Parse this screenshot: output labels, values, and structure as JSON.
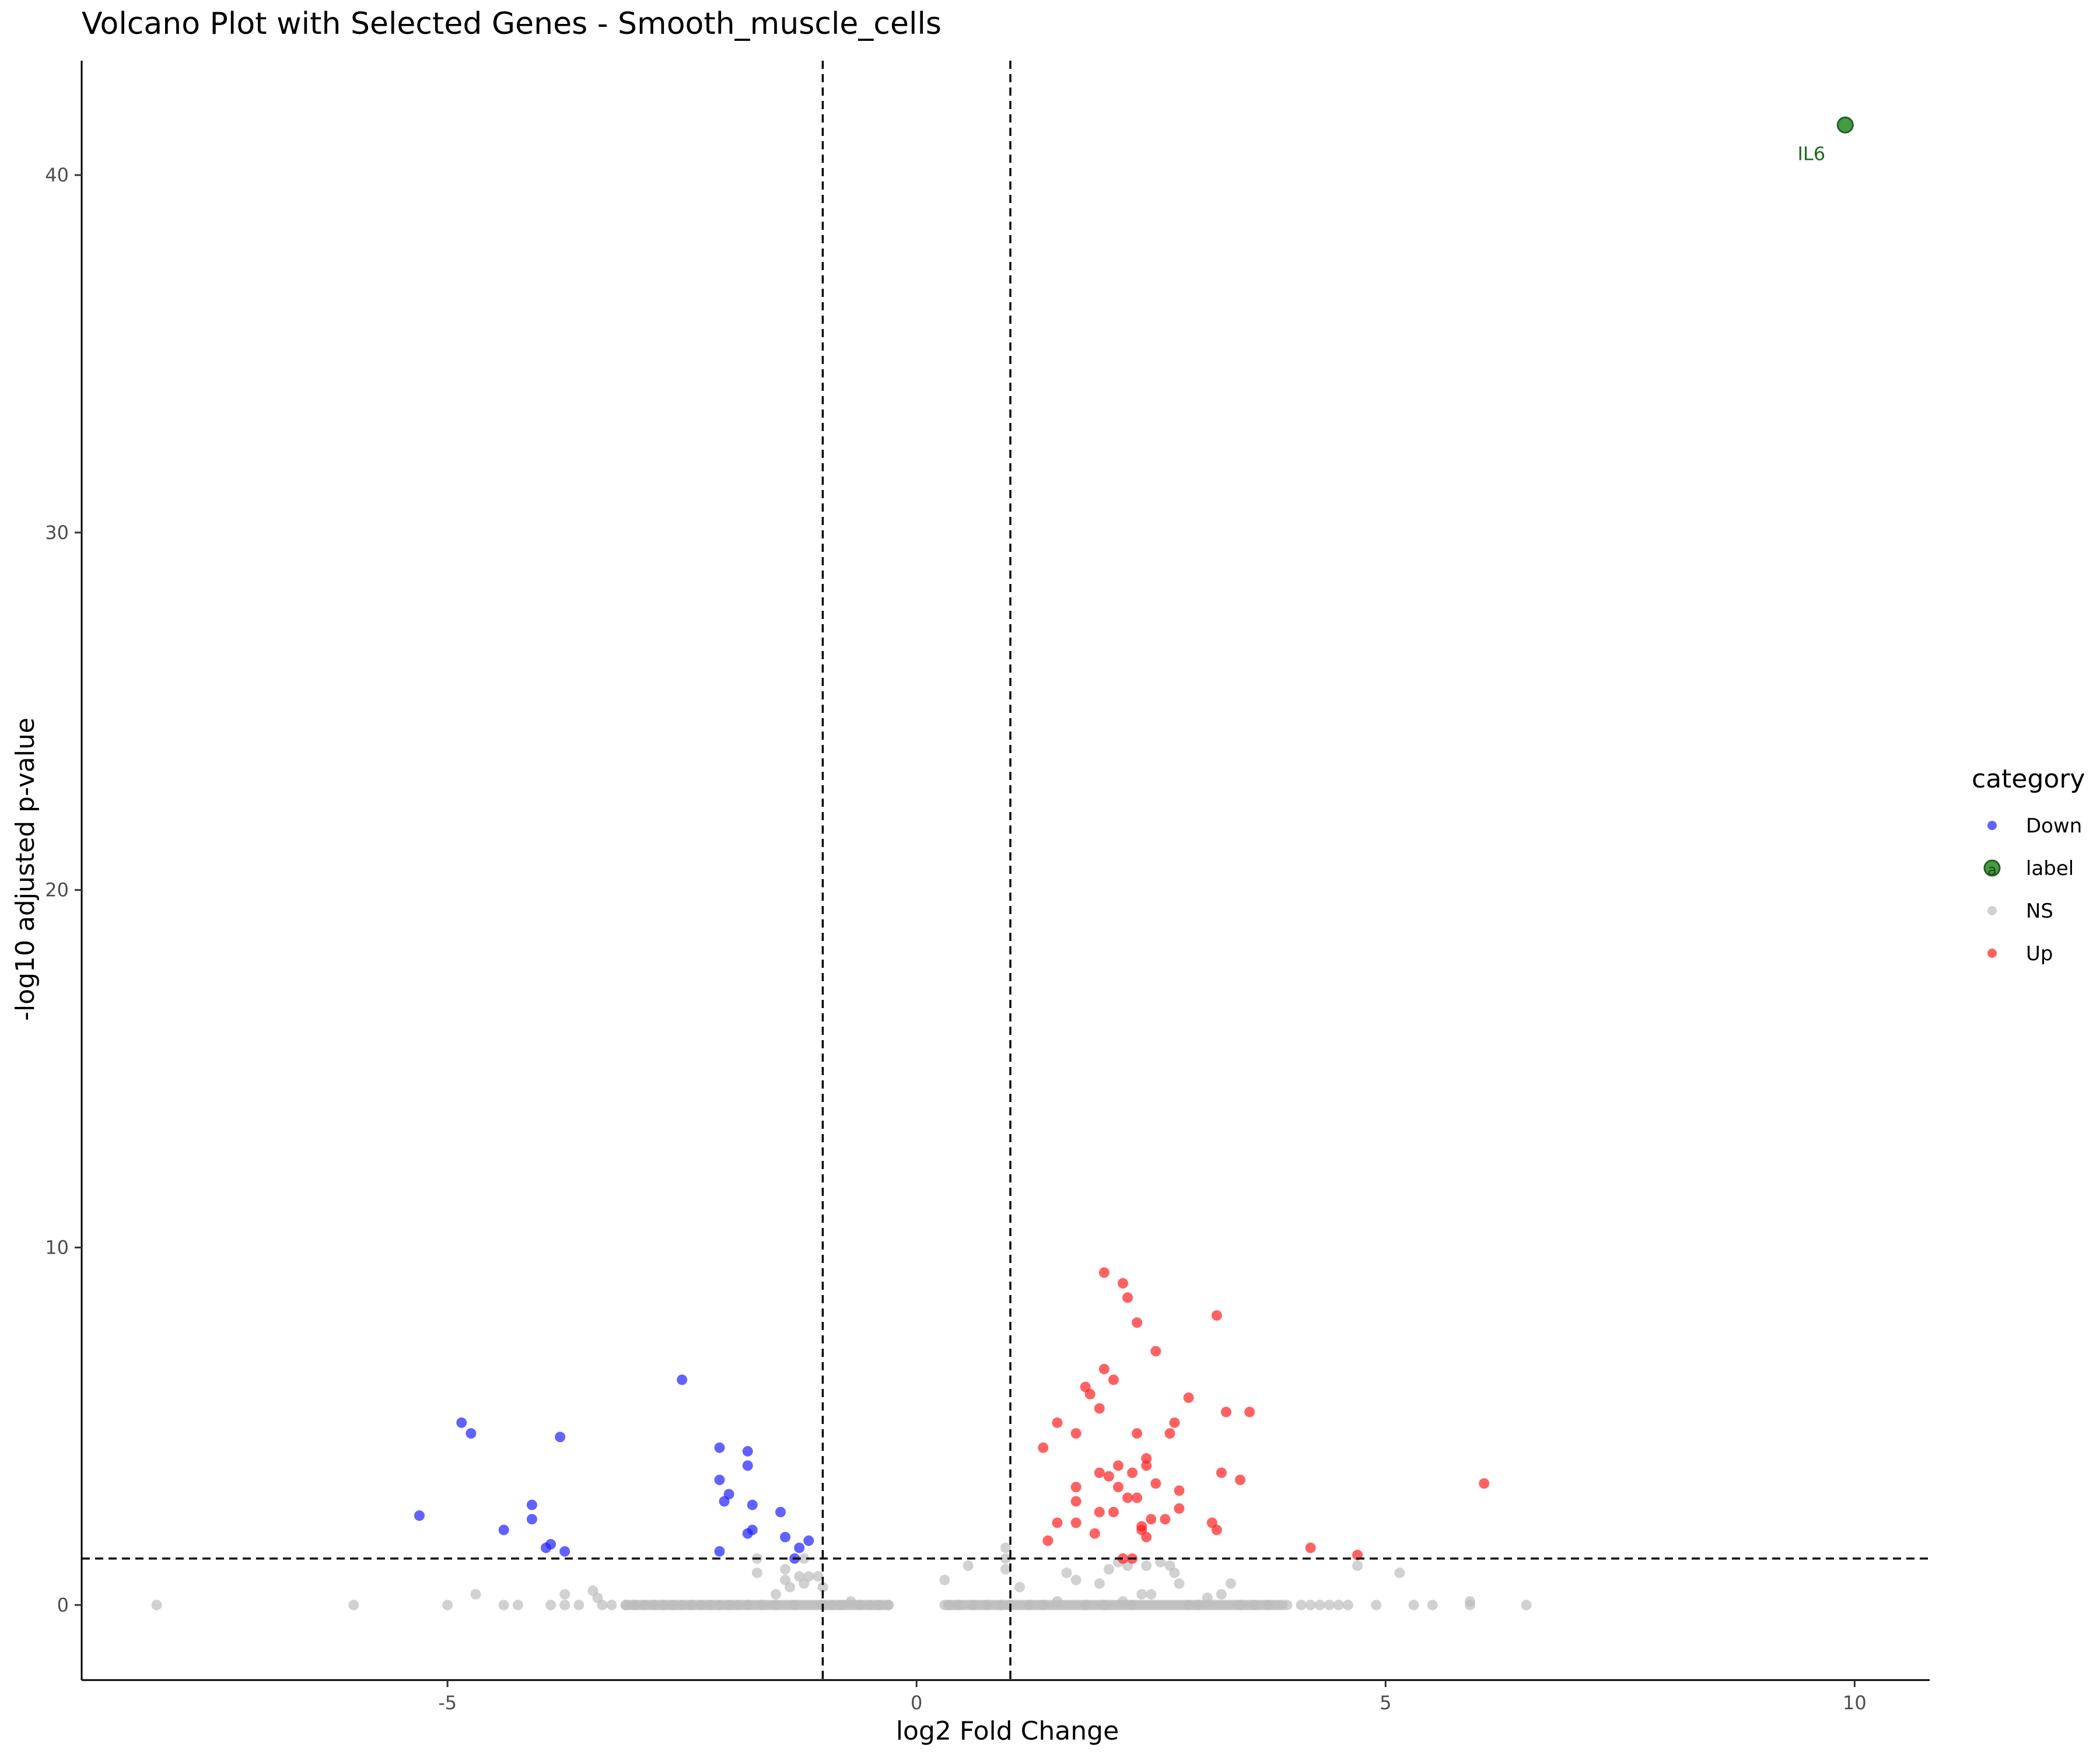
{
  "chart_data": {
    "type": "scatter",
    "title": "Volcano Plot with Selected Genes - Smooth_muscle_cells",
    "xlabel": "log2 Fold Change",
    "ylabel": "-log10 adjusted p-value",
    "xlim": [
      -8.9,
      10.8
    ],
    "ylim": [
      -2.1,
      43.2
    ],
    "xticks": [
      -5,
      0,
      5,
      10
    ],
    "yticks": [
      0,
      10,
      20,
      30,
      40
    ],
    "grid": false,
    "legend": {
      "title": "category",
      "position": "right",
      "entries": [
        {
          "label": "Down",
          "color": "#2020ff"
        },
        {
          "label": "label",
          "color": "#1e8c1e"
        },
        {
          "label": "NS",
          "color": "#bebebe"
        },
        {
          "label": "Up",
          "color": "#ff2020"
        }
      ]
    },
    "thresholds": {
      "x": [
        -1,
        1
      ],
      "y": 1.3
    },
    "series": [
      {
        "name": "Down",
        "color": "#2020ff",
        "points": [
          [
            -5.3,
            2.5
          ],
          [
            -4.85,
            5.1
          ],
          [
            -4.75,
            4.8
          ],
          [
            -4.4,
            2.1
          ],
          [
            -4.1,
            2.8
          ],
          [
            -4.1,
            2.4
          ],
          [
            -3.95,
            1.6
          ],
          [
            -3.9,
            1.7
          ],
          [
            -3.8,
            4.7
          ],
          [
            -3.75,
            1.5
          ],
          [
            -2.5,
            6.3
          ],
          [
            -2.1,
            4.4
          ],
          [
            -2.1,
            3.5
          ],
          [
            -2.05,
            2.9
          ],
          [
            -2.0,
            3.1
          ],
          [
            -2.1,
            1.5
          ],
          [
            -1.8,
            4.3
          ],
          [
            -1.8,
            3.9
          ],
          [
            -1.8,
            2.0
          ],
          [
            -1.75,
            2.8
          ],
          [
            -1.75,
            2.1
          ],
          [
            -1.45,
            2.6
          ],
          [
            -1.4,
            1.9
          ],
          [
            -1.3,
            1.3
          ],
          [
            -1.25,
            1.6
          ],
          [
            -1.15,
            1.8
          ]
        ]
      },
      {
        "name": "Up",
        "color": "#ff2020",
        "points": [
          [
            1.35,
            4.4
          ],
          [
            1.4,
            1.8
          ],
          [
            1.5,
            5.1
          ],
          [
            1.5,
            2.3
          ],
          [
            1.7,
            4.8
          ],
          [
            1.7,
            3.3
          ],
          [
            1.7,
            2.9
          ],
          [
            1.7,
            2.3
          ],
          [
            1.8,
            6.1
          ],
          [
            1.85,
            5.9
          ],
          [
            1.9,
            2.0
          ],
          [
            1.95,
            5.5
          ],
          [
            1.95,
            3.7
          ],
          [
            1.95,
            2.6
          ],
          [
            2.0,
            6.6
          ],
          [
            2.0,
            9.3
          ],
          [
            2.05,
            3.6
          ],
          [
            2.1,
            6.3
          ],
          [
            2.1,
            2.6
          ],
          [
            2.15,
            3.9
          ],
          [
            2.15,
            3.3
          ],
          [
            2.2,
            1.3
          ],
          [
            2.2,
            9.0
          ],
          [
            2.25,
            8.6
          ],
          [
            2.25,
            3.0
          ],
          [
            2.3,
            3.7
          ],
          [
            2.3,
            1.3
          ],
          [
            2.35,
            7.9
          ],
          [
            2.35,
            4.8
          ],
          [
            2.35,
            3.0
          ],
          [
            2.4,
            2.2
          ],
          [
            2.4,
            2.1
          ],
          [
            2.45,
            1.9
          ],
          [
            2.45,
            4.1
          ],
          [
            2.45,
            3.9
          ],
          [
            2.5,
            2.4
          ],
          [
            2.55,
            7.1
          ],
          [
            2.55,
            3.4
          ],
          [
            2.65,
            2.4
          ],
          [
            2.7,
            4.8
          ],
          [
            2.75,
            5.1
          ],
          [
            2.8,
            3.2
          ],
          [
            2.8,
            2.7
          ],
          [
            2.9,
            5.8
          ],
          [
            3.15,
            2.3
          ],
          [
            3.2,
            2.1
          ],
          [
            3.2,
            8.1
          ],
          [
            3.25,
            3.7
          ],
          [
            3.3,
            5.4
          ],
          [
            3.45,
            3.5
          ],
          [
            3.55,
            5.4
          ],
          [
            4.2,
            1.6
          ],
          [
            4.7,
            1.4
          ],
          [
            6.05,
            3.4
          ]
        ]
      },
      {
        "name": "label",
        "color": "#1e8c1e",
        "points": [
          [
            9.9,
            41.4
          ]
        ],
        "labels": [
          "IL6"
        ]
      },
      {
        "name": "NS",
        "color": "#bebebe",
        "points": [
          [
            -8.1,
            0
          ],
          [
            -6.0,
            0
          ],
          [
            -5.0,
            0
          ],
          [
            -4.7,
            0.3
          ],
          [
            -4.4,
            0
          ],
          [
            -4.25,
            0
          ],
          [
            -3.9,
            0
          ],
          [
            -3.75,
            0
          ],
          [
            -3.75,
            0.3
          ],
          [
            -3.6,
            0
          ],
          [
            -3.45,
            0.4
          ],
          [
            -3.4,
            0.2
          ],
          [
            -3.35,
            0
          ],
          [
            -3.25,
            0
          ],
          [
            -3.1,
            0
          ],
          [
            -3.0,
            0
          ],
          [
            -2.9,
            0
          ],
          [
            -2.8,
            0
          ],
          [
            -2.7,
            0
          ],
          [
            -2.6,
            0
          ],
          [
            -2.5,
            0
          ],
          [
            -2.4,
            0
          ],
          [
            -2.3,
            0
          ],
          [
            -2.2,
            0
          ],
          [
            -2.1,
            0
          ],
          [
            -2.0,
            0
          ],
          [
            -1.9,
            0
          ],
          [
            -1.8,
            0
          ],
          [
            -1.7,
            0.9
          ],
          [
            -1.7,
            1.3
          ],
          [
            -1.65,
            0
          ],
          [
            -1.5,
            0.3
          ],
          [
            -1.5,
            0
          ],
          [
            -1.4,
            1.0
          ],
          [
            -1.4,
            0.7
          ],
          [
            -1.35,
            0.5
          ],
          [
            -1.3,
            0
          ],
          [
            -1.25,
            0.8
          ],
          [
            -1.2,
            1.3
          ],
          [
            -1.2,
            0.6
          ],
          [
            -1.15,
            0.8
          ],
          [
            -1.05,
            0.8
          ],
          [
            -1.0,
            0.5
          ],
          [
            -1.0,
            0
          ],
          [
            -0.9,
            0
          ],
          [
            -0.8,
            0
          ],
          [
            -0.7,
            0.1
          ],
          [
            -0.6,
            0
          ],
          [
            -0.5,
            0
          ],
          [
            -0.4,
            0
          ],
          [
            -0.3,
            0
          ],
          [
            0.3,
            0.7
          ],
          [
            0.35,
            0
          ],
          [
            0.45,
            0
          ],
          [
            0.55,
            1.1
          ],
          [
            0.6,
            0
          ],
          [
            0.75,
            0
          ],
          [
            0.9,
            0
          ],
          [
            0.95,
            1.3
          ],
          [
            0.95,
            1.6
          ],
          [
            0.95,
            1.0
          ],
          [
            1.0,
            0
          ],
          [
            1.1,
            0.5
          ],
          [
            1.2,
            0
          ],
          [
            1.35,
            0
          ],
          [
            1.5,
            0.1
          ],
          [
            1.6,
            0.9
          ],
          [
            1.7,
            0.7
          ],
          [
            1.8,
            0
          ],
          [
            1.95,
            0.6
          ],
          [
            2.0,
            0
          ],
          [
            2.05,
            1.0
          ],
          [
            2.15,
            1.2
          ],
          [
            2.2,
            0.1
          ],
          [
            2.25,
            1.1
          ],
          [
            2.3,
            0
          ],
          [
            2.4,
            0.3
          ],
          [
            2.45,
            1.1
          ],
          [
            2.5,
            0.3
          ],
          [
            2.6,
            1.2
          ],
          [
            2.7,
            1.1
          ],
          [
            2.75,
            0.9
          ],
          [
            2.8,
            0.6
          ],
          [
            2.9,
            0
          ],
          [
            3.0,
            0
          ],
          [
            3.1,
            0.2
          ],
          [
            3.25,
            0.3
          ],
          [
            3.35,
            0.6
          ],
          [
            3.45,
            0
          ],
          [
            3.6,
            0
          ],
          [
            3.75,
            0
          ],
          [
            3.95,
            0
          ],
          [
            4.1,
            0
          ],
          [
            4.2,
            0
          ],
          [
            4.3,
            0
          ],
          [
            4.4,
            0
          ],
          [
            4.5,
            0
          ],
          [
            4.6,
            0
          ],
          [
            4.7,
            1.1
          ],
          [
            4.9,
            0
          ],
          [
            5.15,
            0.9
          ],
          [
            5.3,
            0
          ],
          [
            5.5,
            0
          ],
          [
            5.9,
            0.1
          ],
          [
            5.9,
            0
          ],
          [
            6.5,
            0
          ]
        ]
      }
    ],
    "ns_bands": [
      [
        -3.1,
        -0.3
      ],
      [
        0.3,
        3.9
      ]
    ]
  }
}
